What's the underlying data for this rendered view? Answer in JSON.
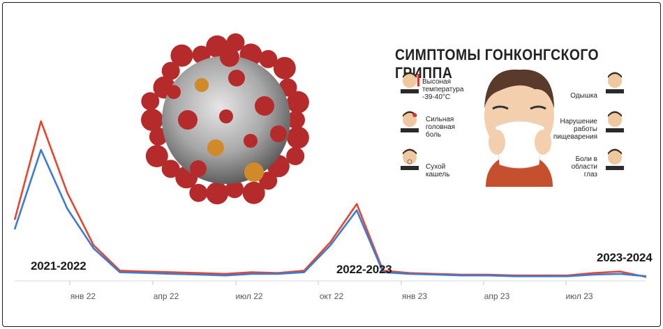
{
  "chart_data": {
    "type": "line",
    "x_ticks": [
      "янв 22",
      "апр 22",
      "июл 22",
      "окт 22",
      "янв 23",
      "апр 23",
      "июл 23"
    ],
    "season_labels": [
      "2021-2022",
      "2022-2023",
      "2023-2024"
    ],
    "series": [
      {
        "color": "#e8452c",
        "values": [
          0.38,
          1.0,
          0.55,
          0.22,
          0.06,
          0.055,
          0.05,
          0.045,
          0.04,
          0.05,
          0.045,
          0.06,
          0.24,
          0.48,
          0.06,
          0.045,
          0.04,
          0.035,
          0.035,
          0.03,
          0.03,
          0.03,
          0.045,
          0.055,
          0.02
        ]
      },
      {
        "color": "#3a7bd5",
        "values": [
          0.32,
          0.82,
          0.45,
          0.2,
          0.05,
          0.045,
          0.04,
          0.035,
          0.03,
          0.04,
          0.04,
          0.05,
          0.22,
          0.44,
          0.05,
          0.04,
          0.035,
          0.03,
          0.03,
          0.025,
          0.025,
          0.025,
          0.035,
          0.04,
          0.025
        ]
      }
    ],
    "grid": false
  },
  "poster": {
    "title": "СИМПТОМЫ ГОНКОНГСКОГО ГРИППА",
    "left_symptoms": [
      "Высоная температура -39-40°C",
      "Сильная головная боль",
      "Сухой кашель"
    ],
    "right_symptoms": [
      "Одышка",
      "Нарушение работы пищеварения",
      "Боли в области глаз"
    ]
  },
  "colors": {
    "red_line": "#e8452c",
    "blue_line": "#3a7bd5",
    "virus_red": "#b52a2a",
    "virus_grey": "#9a9a9a"
  }
}
